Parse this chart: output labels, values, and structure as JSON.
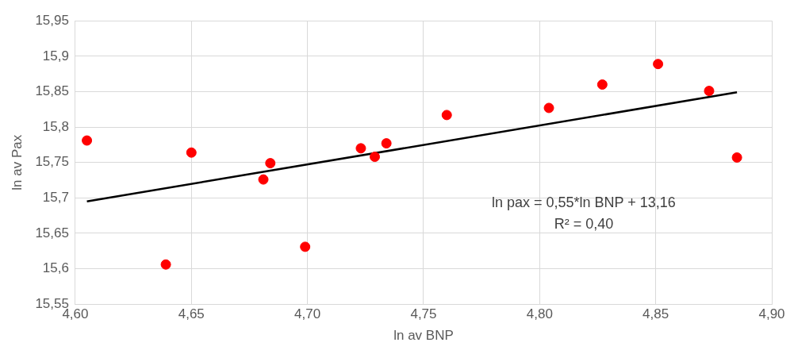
{
  "chart_data": {
    "type": "scatter",
    "xlabel": "ln av BNP",
    "ylabel": "ln av Pax",
    "x": [
      4.605,
      4.639,
      4.65,
      4.681,
      4.684,
      4.699,
      4.723,
      4.729,
      4.734,
      4.76,
      4.804,
      4.827,
      4.851,
      4.873,
      4.885
    ],
    "series": [
      {
        "marker": "circle",
        "color": "#ff0000",
        "values": [
          15.781,
          15.606,
          15.764,
          15.726,
          15.749,
          15.631,
          15.77,
          15.758,
          15.777,
          15.817,
          15.827,
          15.86,
          15.889,
          15.851,
          15.757
        ]
      },
      {
        "type": "line",
        "color": "#000000",
        "x": [
          4.605,
          4.885
        ],
        "values": [
          15.695,
          15.849
        ]
      }
    ],
    "xlim": [
      4.6,
      4.9
    ],
    "xticks": [
      {
        "value": 4.6,
        "label": "4,60"
      },
      {
        "value": 4.65,
        "label": "4,65"
      },
      {
        "value": 4.7,
        "label": "4,70"
      },
      {
        "value": 4.75,
        "label": "4,75"
      },
      {
        "value": 4.8,
        "label": "4,80"
      },
      {
        "value": 4.85,
        "label": "4,85"
      },
      {
        "value": 4.9,
        "label": "4,90"
      }
    ],
    "ylim": [
      15.55,
      15.95
    ],
    "yticks": [
      {
        "value": 15.55,
        "label": "15,55"
      },
      {
        "value": 15.6,
        "label": "15,6"
      },
      {
        "value": 15.65,
        "label": "15,65"
      },
      {
        "value": 15.7,
        "label": "15,7"
      },
      {
        "value": 15.75,
        "label": "15,75"
      },
      {
        "value": 15.8,
        "label": "15,8"
      },
      {
        "value": 15.85,
        "label": "15,85"
      },
      {
        "value": 15.9,
        "label": "15,9"
      },
      {
        "value": 15.95,
        "label": "15,95"
      }
    ],
    "grid": true,
    "annotations": [
      "ln pax = 0,55*ln BNP + 13,16",
      "R² = 0,40"
    ]
  }
}
